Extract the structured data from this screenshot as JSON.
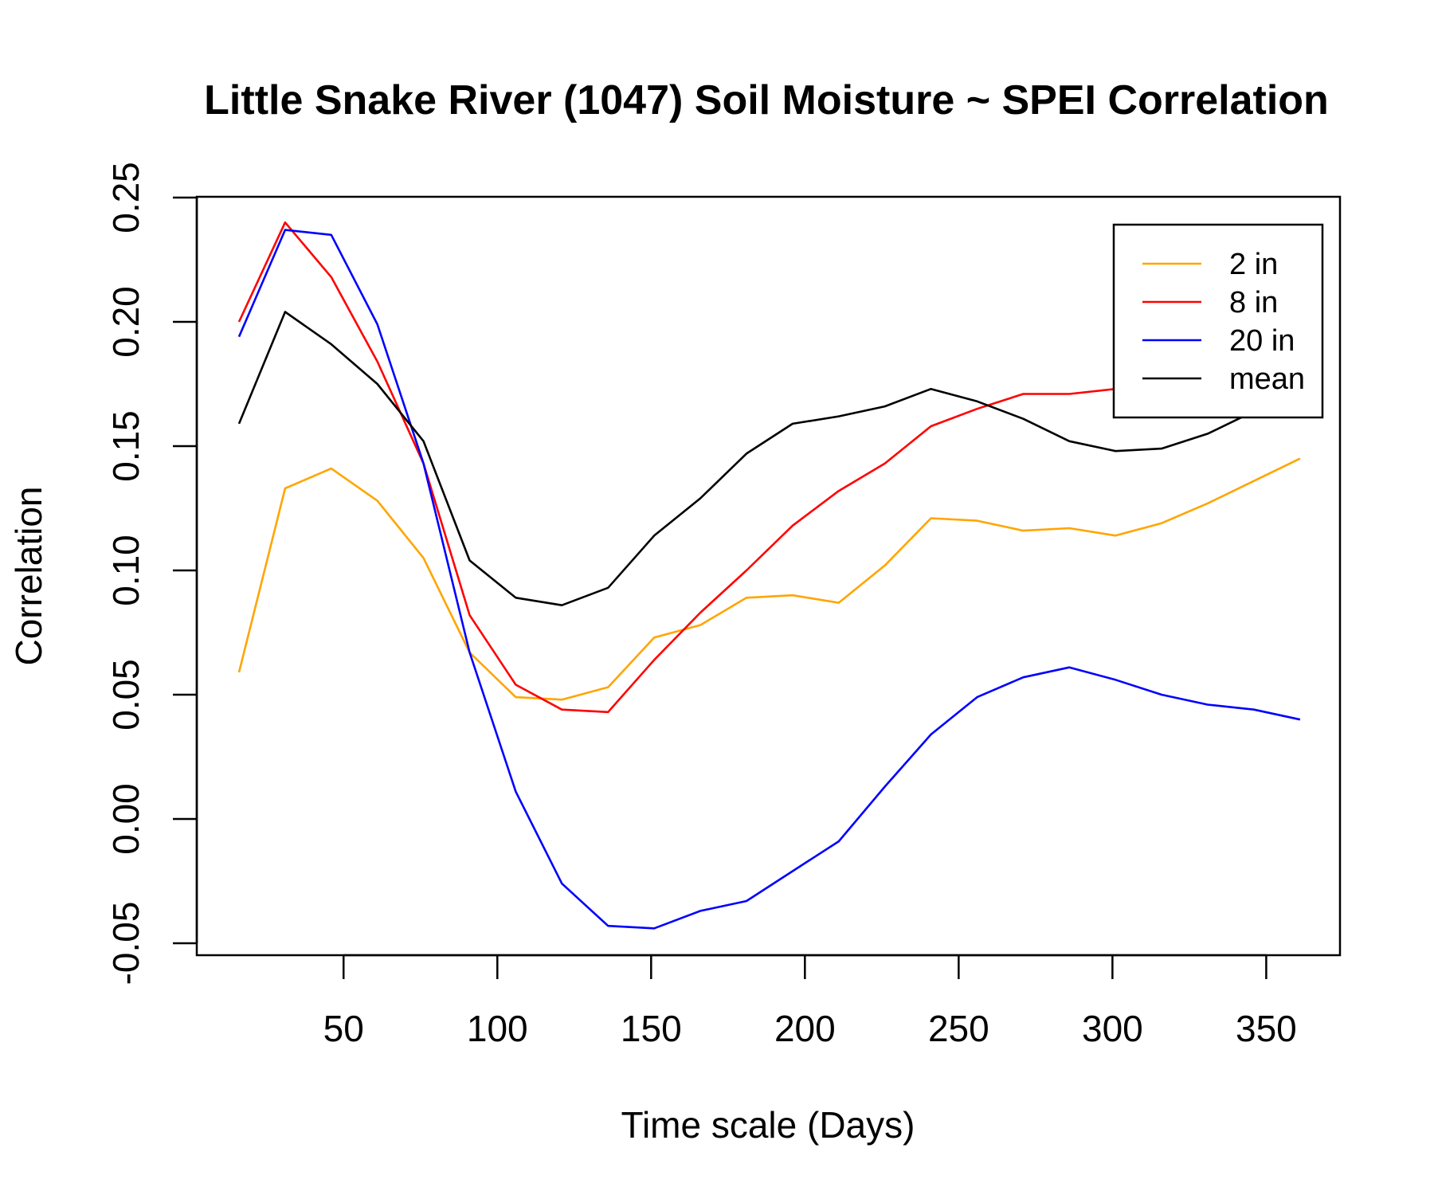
{
  "chart_data": {
    "type": "line",
    "title": "Little Snake River (1047) Soil Moisture ~ SPEI Correlation",
    "xlabel": "Time scale (Days)",
    "ylabel": "Correlation",
    "xlim": [
      16,
      360
    ],
    "ylim": [
      -0.05,
      0.25
    ],
    "xticks": [
      50,
      100,
      150,
      200,
      250,
      300,
      350
    ],
    "xtick_labels": [
      "50",
      "100",
      "150",
      "200",
      "250",
      "300",
      "350"
    ],
    "yticks": [
      -0.05,
      0.0,
      0.05,
      0.1,
      0.15,
      0.2,
      0.25
    ],
    "ytick_labels": [
      "-0.05",
      "0.00",
      "0.05",
      "0.10",
      "0.15",
      "0.20",
      "0.25"
    ],
    "legend_position": "top-right",
    "x": [
      16,
      31,
      46,
      61,
      76,
      91,
      106,
      121,
      136,
      151,
      166,
      181,
      196,
      211,
      226,
      241,
      256,
      271,
      286,
      301,
      316,
      331,
      346,
      361
    ],
    "series": [
      {
        "name": "2 in",
        "color": "#FFA500",
        "values": [
          0.059,
          0.133,
          0.141,
          0.128,
          0.105,
          0.067,
          0.049,
          0.048,
          0.053,
          0.073,
          0.078,
          0.089,
          0.09,
          0.087,
          0.102,
          0.121,
          0.12,
          0.116,
          0.117,
          0.114,
          0.119,
          0.127,
          0.136,
          0.145
        ]
      },
      {
        "name": "8 in",
        "color": "#FF0000",
        "values": [
          0.2,
          0.24,
          0.218,
          0.184,
          0.143,
          0.082,
          0.054,
          0.044,
          0.043,
          0.064,
          0.083,
          0.1,
          0.118,
          0.132,
          0.143,
          0.158,
          0.165,
          0.171,
          0.171,
          0.173,
          0.176,
          0.18,
          0.184,
          0.188
        ]
      },
      {
        "name": "20 in",
        "color": "#0000FF",
        "values": [
          0.194,
          0.237,
          0.235,
          0.199,
          0.143,
          0.067,
          0.011,
          -0.026,
          -0.043,
          -0.044,
          -0.037,
          -0.033,
          -0.021,
          -0.009,
          0.013,
          0.034,
          0.049,
          0.057,
          0.061,
          0.056,
          0.05,
          0.046,
          0.044,
          0.04
        ]
      },
      {
        "name": "mean",
        "color": "#000000",
        "values": [
          0.159,
          0.204,
          0.191,
          0.175,
          0.152,
          0.104,
          0.089,
          0.086,
          0.093,
          0.114,
          0.129,
          0.147,
          0.159,
          0.162,
          0.166,
          0.173,
          0.168,
          0.161,
          0.152,
          0.148,
          0.149,
          0.155,
          0.164,
          0.173
        ]
      }
    ]
  }
}
